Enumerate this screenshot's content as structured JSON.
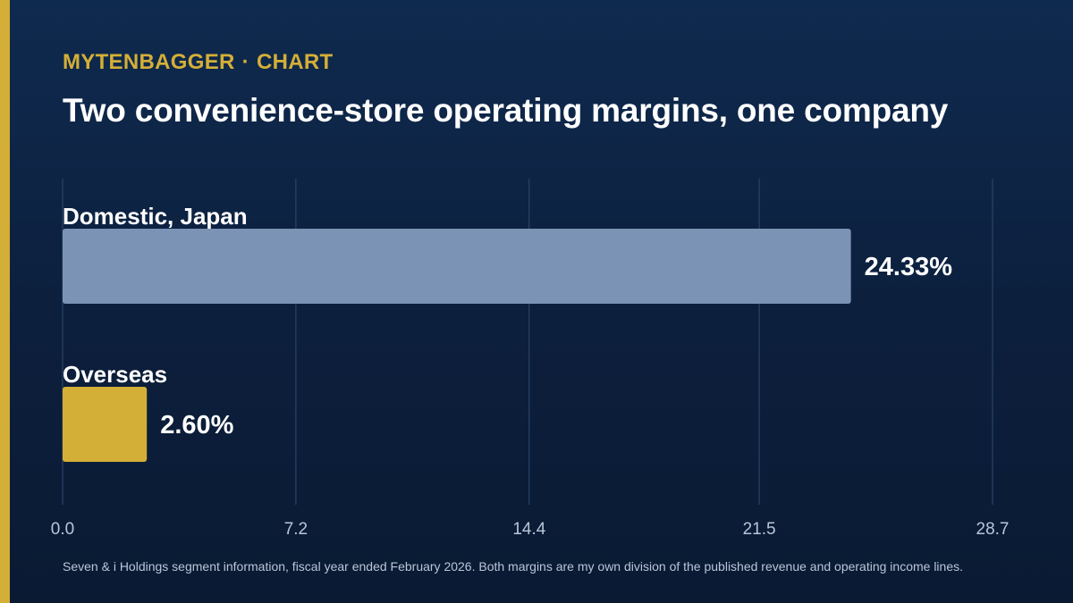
{
  "header": {
    "brand": "MYTENBAGGER",
    "separator": "·",
    "section": "CHART",
    "title": "Two convenience-store operating margins, one company"
  },
  "chart_data": {
    "type": "bar",
    "orientation": "horizontal",
    "title": "Two convenience-store operating margins, one company",
    "categories": [
      "Domestic, Japan",
      "Overseas"
    ],
    "values": [
      24.33,
      2.6
    ],
    "value_labels": [
      "24.33%",
      "2.60%"
    ],
    "bar_colors": [
      "#7b93b5",
      "#d4af37"
    ],
    "xlim": [
      0,
      28.7
    ],
    "x_ticks": [
      0.0,
      7.2,
      14.4,
      21.5,
      28.7
    ],
    "x_tick_labels": [
      "0.0",
      "7.2",
      "14.4",
      "21.5",
      "28.7"
    ],
    "xlabel": "",
    "ylabel": "",
    "grid": true,
    "legend": "none"
  },
  "footnote": "Seven & i Holdings segment information, fiscal year ended February 2026. Both margins are my own division of the published revenue and operating income lines.",
  "colors": {
    "accent": "#d4af37",
    "background": "#0d2242",
    "bar_domestic": "#7b93b5",
    "bar_overseas": "#d4af37",
    "text": "#ffffff",
    "muted_text": "#b9c6d8"
  }
}
